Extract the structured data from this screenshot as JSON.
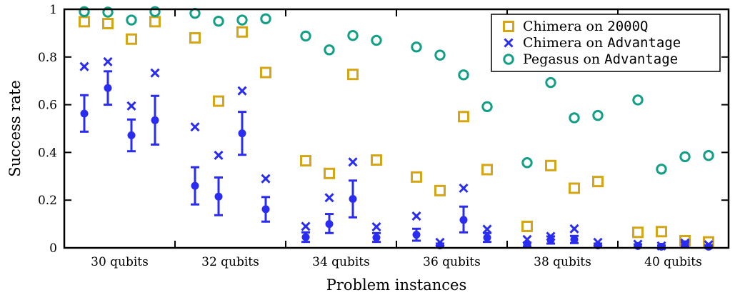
{
  "chart_data": {
    "type": "scatter",
    "xlabel": "Problem instances",
    "ylabel": "Success rate",
    "ylim": [
      0,
      1
    ],
    "yticks": [
      "0",
      "0.2",
      "0.4",
      "0.6",
      "0.8",
      "1"
    ],
    "grid": false,
    "legend_position": "top-right",
    "groups": [
      "30 qubits",
      "32 qubits",
      "34 qubits",
      "36 qubits",
      "38 qubits",
      "40 qubits"
    ],
    "instances_per_group": 4,
    "colors": {
      "c2000q": "#d4a514",
      "advantage": "#2a2cf0",
      "pegasus": "#139f86"
    },
    "series": [
      {
        "legend_parts": [
          "Chimera on ",
          "2000Q"
        ],
        "marker": "square",
        "color": "#d4a514",
        "values": [
          0.948,
          0.94,
          0.875,
          0.948,
          0.88,
          0.615,
          0.905,
          0.735,
          0.365,
          0.312,
          0.727,
          0.368,
          0.297,
          0.24,
          0.55,
          0.328,
          0.09,
          0.345,
          0.25,
          0.278,
          0.065,
          0.068,
          0.03,
          0.025
        ]
      },
      {
        "legend_parts": [
          "Chimera on ",
          "Advantage"
        ],
        "marker": "cross",
        "color": "#2a2cf0",
        "values": [
          0.76,
          0.78,
          0.595,
          0.733,
          0.507,
          0.388,
          0.658,
          0.29,
          0.09,
          0.21,
          0.36,
          0.088,
          0.133,
          0.023,
          0.25,
          0.078,
          0.035,
          0.048,
          0.08,
          0.023,
          0.015,
          0.008,
          0.02,
          0.013
        ]
      },
      {
        "legend_parts": [
          "Pegasus on ",
          "Advantage"
        ],
        "marker": "circle",
        "color": "#139f86",
        "values": [
          0.99,
          0.988,
          0.955,
          0.99,
          0.983,
          0.95,
          0.955,
          0.96,
          0.888,
          0.83,
          0.89,
          0.87,
          0.842,
          0.808,
          0.725,
          0.592,
          0.357,
          0.693,
          0.545,
          0.555,
          0.62,
          0.33,
          0.382,
          0.387
        ]
      }
    ],
    "error_series": {
      "marker": "dot",
      "color": "#2a2cf0",
      "points": [
        {
          "mean": 0.563,
          "lo": 0.487,
          "hi": 0.64
        },
        {
          "mean": 0.67,
          "lo": 0.6,
          "hi": 0.74
        },
        {
          "mean": 0.472,
          "lo": 0.405,
          "hi": 0.538
        },
        {
          "mean": 0.535,
          "lo": 0.433,
          "hi": 0.637
        },
        {
          "mean": 0.26,
          "lo": 0.182,
          "hi": 0.338
        },
        {
          "mean": 0.215,
          "lo": 0.137,
          "hi": 0.295
        },
        {
          "mean": 0.48,
          "lo": 0.39,
          "hi": 0.57
        },
        {
          "mean": 0.162,
          "lo": 0.11,
          "hi": 0.213
        },
        {
          "mean": 0.045,
          "lo": 0.025,
          "hi": 0.065
        },
        {
          "mean": 0.1,
          "lo": 0.062,
          "hi": 0.142
        },
        {
          "mean": 0.205,
          "lo": 0.128,
          "hi": 0.282
        },
        {
          "mean": 0.043,
          "lo": 0.025,
          "hi": 0.062
        },
        {
          "mean": 0.055,
          "lo": 0.03,
          "hi": 0.08
        },
        {
          "mean": 0.01,
          "lo": 0.003,
          "hi": 0.018
        },
        {
          "mean": 0.117,
          "lo": 0.065,
          "hi": 0.173
        },
        {
          "mean": 0.043,
          "lo": 0.025,
          "hi": 0.062
        },
        {
          "mean": 0.013,
          "lo": 0.005,
          "hi": 0.022
        },
        {
          "mean": 0.033,
          "lo": 0.018,
          "hi": 0.048
        },
        {
          "mean": 0.035,
          "lo": 0.02,
          "hi": 0.05
        },
        {
          "mean": 0.01,
          "lo": 0.003,
          "hi": 0.018
        },
        {
          "mean": 0.008,
          "lo": 0.002,
          "hi": 0.015
        },
        {
          "mean": 0.005,
          "lo": 0.0,
          "hi": 0.01
        },
        {
          "mean": 0.015,
          "lo": 0.005,
          "hi": 0.025
        },
        {
          "mean": 0.005,
          "lo": 0.0,
          "hi": 0.01
        }
      ]
    }
  }
}
